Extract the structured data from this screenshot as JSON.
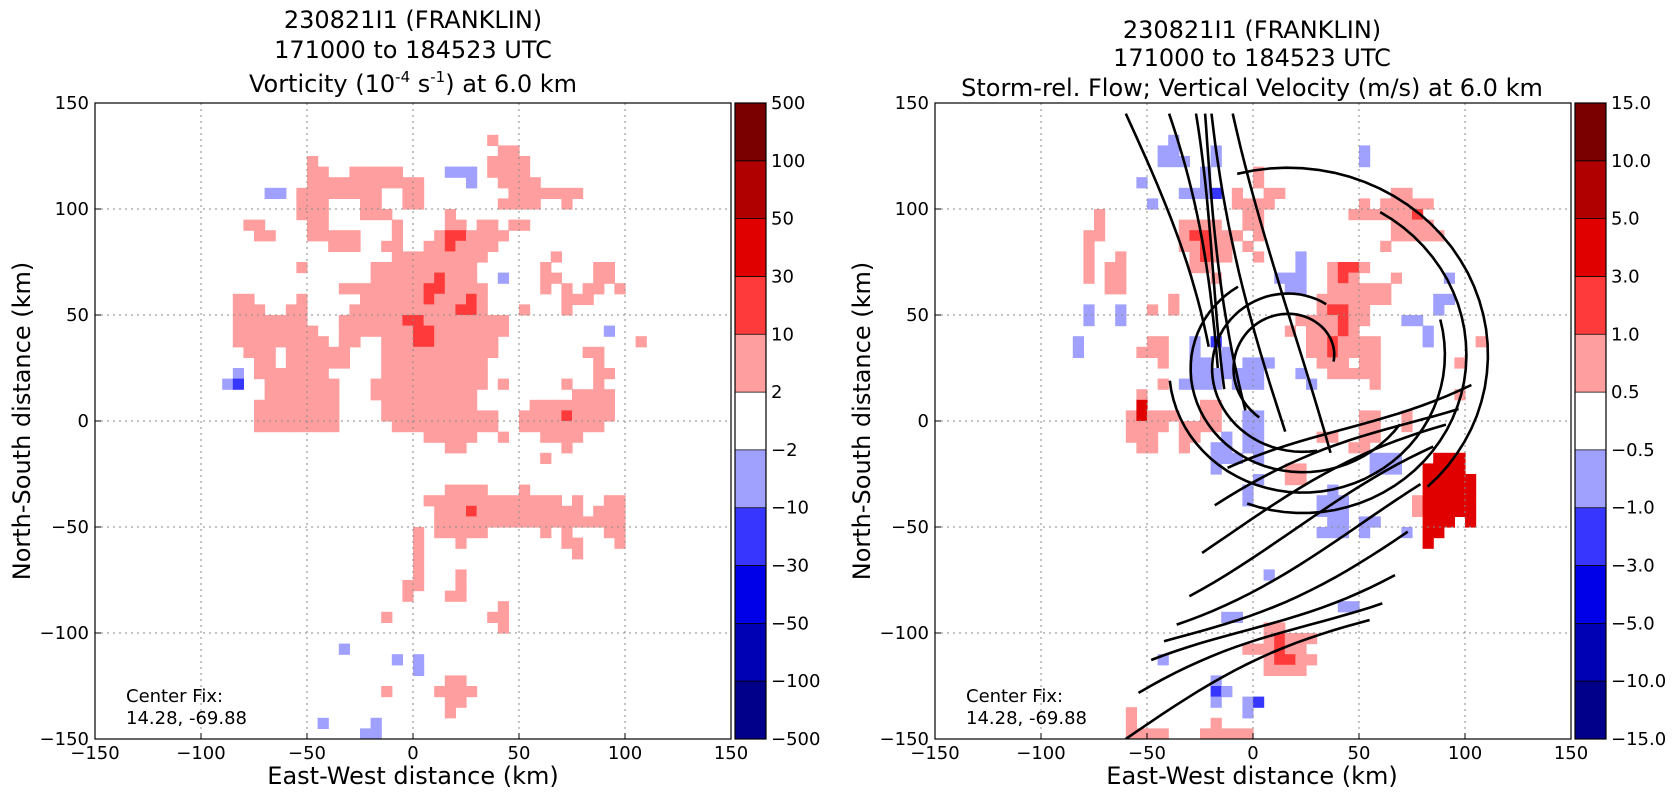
{
  "chart_data": [
    {
      "type": "heatmap",
      "title_lines": [
        "230821I1 (FRANKLIN)",
        "171000 to 184523 UTC"
      ],
      "subtitle": {
        "pre": "Vorticity (10",
        "exp1": "-4",
        "mid": " s",
        "exp2": "-1",
        "post": ") at 6.0 km"
      },
      "xlabel": "East-West distance (km)",
      "ylabel": "North-South distance (km)",
      "xlim": [
        -150,
        150
      ],
      "ylim": [
        -150,
        150
      ],
      "x_ticks": [
        -150,
        -100,
        -50,
        0,
        50,
        100,
        150
      ],
      "y_ticks": [
        -150,
        -100,
        -50,
        0,
        50,
        100,
        150
      ],
      "x_tick_labels": [
        "−150",
        "−100",
        "−50",
        "0",
        "50",
        "100",
        "150"
      ],
      "y_tick_labels": [
        "−150",
        "−100",
        "−50",
        "0",
        "50",
        "100",
        "150"
      ],
      "grid": true,
      "annotation": [
        "Center Fix:",
        "14.28, -69.88"
      ],
      "colorbar": {
        "labels": [
          "500",
          "100",
          "50",
          "30",
          "10",
          "2",
          "−2",
          "−10",
          "−30",
          "−50",
          "−100",
          "−500"
        ],
        "colors": [
          "#7a0000",
          "#b00000",
          "#e00000",
          "#ff3a3a",
          "#ff9e9e",
          "#ffffff",
          "#a0a0ff",
          "#3636ff",
          "#0000e8",
          "#0000b4",
          "#00008a"
        ]
      },
      "field": "vorticity",
      "streamlines": false
    },
    {
      "type": "heatmap",
      "title_lines": [
        "230821I1 (FRANKLIN)",
        "171000 to 184523 UTC"
      ],
      "subtitle": {
        "pre": "Storm-rel. Flow; Vertical Velocity (m/s) at 6.0 km",
        "exp1": "",
        "mid": "",
        "exp2": "",
        "post": ""
      },
      "xlabel": "East-West distance (km)",
      "ylabel": "North-South distance (km)",
      "xlim": [
        -150,
        150
      ],
      "ylim": [
        -150,
        150
      ],
      "x_ticks": [
        -150,
        -100,
        -50,
        0,
        50,
        100,
        150
      ],
      "y_ticks": [
        -150,
        -100,
        -50,
        0,
        50,
        100,
        150
      ],
      "x_tick_labels": [
        "−150",
        "−100",
        "−50",
        "0",
        "50",
        "100",
        "150"
      ],
      "y_tick_labels": [
        "−150",
        "−100",
        "−50",
        "0",
        "50",
        "100",
        "150"
      ],
      "grid": true,
      "annotation": [
        "Center Fix:",
        "14.28, -69.88"
      ],
      "colorbar": {
        "labels": [
          "15.0",
          "10.0",
          "5.0",
          "3.0",
          "1.0",
          "0.5",
          "−0.5",
          "−1.0",
          "−3.0",
          "−5.0",
          "−10.0",
          "−15.0"
        ],
        "colors": [
          "#7a0000",
          "#b00000",
          "#e00000",
          "#ff3a3a",
          "#ff9e9e",
          "#ffffff",
          "#a0a0ff",
          "#3636ff",
          "#0000e8",
          "#0000b4",
          "#00008a"
        ]
      },
      "field": "vertical_velocity",
      "streamlines": true
    }
  ]
}
